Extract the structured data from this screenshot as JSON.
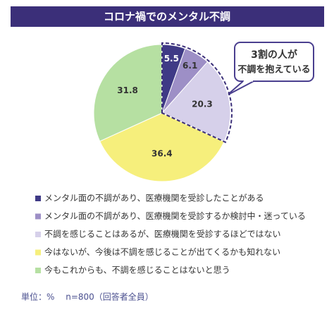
{
  "chart_data": {
    "type": "pie",
    "title": "コロナ禍でのメンタル不調",
    "categories": [
      "メンタル面の不調があり、医療機関を受診したことがある",
      "メンタル面の不調があり、医療機関を受診するか検討中・迷っている",
      "不調を感じることはあるが、医療機関を受診するほどではない",
      "今はないが、今後は不調を感じることが出てくるかも知れない",
      "今もこれからも、不調を感じることはないと思う"
    ],
    "values": [
      5.5,
      6.1,
      20.3,
      36.4,
      31.8
    ],
    "colors": [
      "#3f3a86",
      "#9d8fc6",
      "#d6d0ea",
      "#f6ef7c",
      "#b6e0a2"
    ],
    "annotation": [
      "3割の人が",
      "不調を抱えている"
    ],
    "footnote": "単位：%　 n=800（回答者全員）"
  }
}
